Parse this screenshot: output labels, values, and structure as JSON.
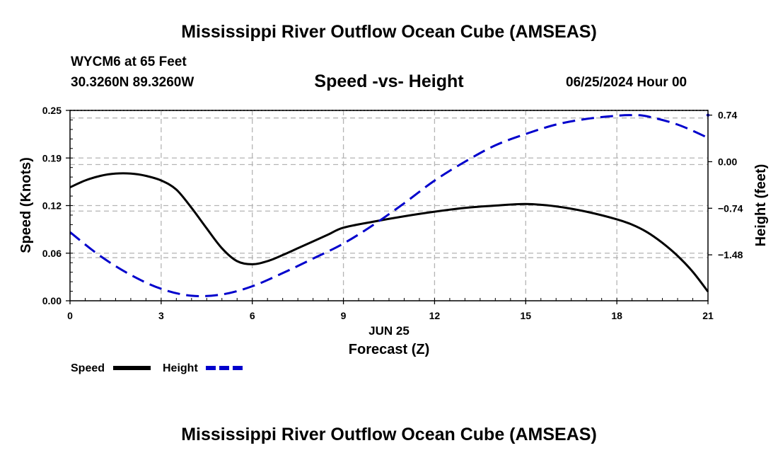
{
  "header": {
    "title": "Mississippi River Outflow Ocean Cube (AMSEAS)",
    "station": "WYCM6 at 65 Feet",
    "coordinates": "30.3260N  89.3260W",
    "subtitle": "Speed -vs- Height",
    "date": "06/25/2024 Hour 00"
  },
  "footer": {
    "title": "Mississippi River Outflow Ocean Cube (AMSEAS)"
  },
  "colors": {
    "speed": "#000000",
    "height": "#0000cc",
    "grid": "#b4b4b4"
  },
  "chart_data": {
    "type": "line",
    "title": "Speed -vs- Height",
    "xlabel": "Forecast (Z)",
    "xlabel_date": "JUN 25",
    "ylabel": "Speed (Knots)",
    "y2label": "Height (feet)",
    "xlim": [
      0,
      21
    ],
    "ylim": [
      0,
      0.25
    ],
    "y2lim": [
      -2.21,
      0.815
    ],
    "xticks": [
      0,
      3,
      6,
      9,
      12,
      15,
      18,
      21
    ],
    "xtick_labels": [
      "0",
      "3",
      "6",
      "9",
      "12",
      "15",
      "18",
      "21"
    ],
    "yticks": [
      0,
      0.0625,
      0.125,
      0.1875,
      0.25
    ],
    "ytick_labels": [
      "0.00",
      "0.06",
      "0.12",
      "0.19",
      "0.25"
    ],
    "y2ticks": [
      -1.48,
      -0.74,
      0.0,
      0.74
    ],
    "y2tick_labels": [
      "−1.48",
      "−0.74",
      "0.00",
      "0.74"
    ],
    "grid": true,
    "legend": {
      "position": "bottom-left",
      "entries": [
        "Speed",
        "Height"
      ]
    },
    "series": [
      {
        "name": "Speed",
        "axis": "left",
        "style": "solid",
        "x": [
          0,
          0.5,
          1,
          1.5,
          2,
          2.5,
          3,
          3.5,
          4,
          4.5,
          5,
          5.5,
          6,
          6.5,
          7,
          7.5,
          8,
          8.5,
          9,
          10,
          11,
          12,
          13,
          14,
          15,
          16,
          17,
          18,
          18.5,
          19,
          19.5,
          20,
          20.5,
          21
        ],
        "values": [
          0.149,
          0.158,
          0.164,
          0.167,
          0.167,
          0.164,
          0.158,
          0.146,
          0.122,
          0.095,
          0.069,
          0.052,
          0.048,
          0.052,
          0.06,
          0.069,
          0.078,
          0.087,
          0.096,
          0.104,
          0.111,
          0.117,
          0.122,
          0.125,
          0.127,
          0.124,
          0.117,
          0.107,
          0.1,
          0.09,
          0.076,
          0.059,
          0.038,
          0.012
        ]
      },
      {
        "name": "Height",
        "axis": "right",
        "style": "dashed",
        "x": [
          0,
          1,
          2,
          3,
          4,
          5,
          6,
          7,
          8,
          9,
          10,
          11,
          12,
          13,
          14,
          15,
          16,
          17,
          18,
          18.5,
          19,
          20,
          21
        ],
        "values": [
          -1.12,
          -1.5,
          -1.8,
          -2.02,
          -2.13,
          -2.11,
          -1.98,
          -1.77,
          -1.54,
          -1.3,
          -1.0,
          -0.66,
          -0.3,
          0.0,
          0.26,
          0.44,
          0.59,
          0.68,
          0.73,
          0.74,
          0.72,
          0.59,
          0.38
        ]
      }
    ]
  }
}
